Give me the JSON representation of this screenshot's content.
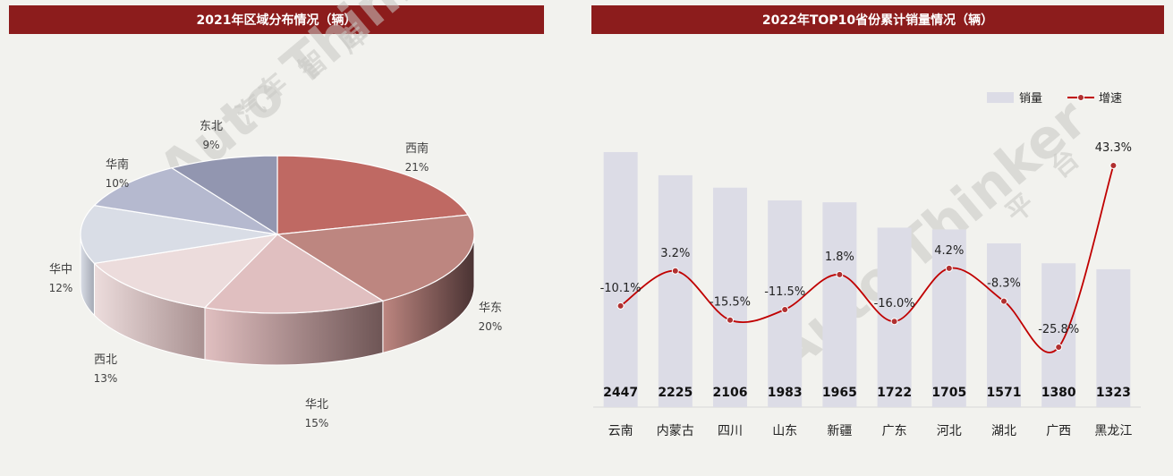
{
  "panels": {
    "pie_title": "2021年区域分布情况（辆）",
    "combo_title": "2022年TOP10省份累计销量情况（辆）"
  },
  "watermark": {
    "text": "Auto Thinker",
    "cn_left": [
      "汽",
      "车",
      "智",
      "库"
    ],
    "cn_right": [
      "平",
      "台"
    ]
  },
  "chart_data": [
    {
      "type": "pie",
      "title": "2021年区域分布情况（辆）",
      "slices": [
        {
          "name": "西南",
          "pct": "21%",
          "value": 21,
          "color": "#bf6963",
          "side": "#6b3331"
        },
        {
          "name": "华东",
          "pct": "20%",
          "value": 20,
          "color": "#bd8680",
          "side": "#4a3333"
        },
        {
          "name": "华北",
          "pct": "15%",
          "value": 15,
          "color": "#e0bfc0",
          "side": "#6e5555"
        },
        {
          "name": "西北",
          "pct": "13%",
          "value": 13,
          "color": "#ecdcdc",
          "side": "#a89090"
        },
        {
          "name": "华中",
          "pct": "12%",
          "value": 12,
          "color": "#d9dde6",
          "side": "#a3a8b3"
        },
        {
          "name": "华南",
          "pct": "10%",
          "value": 10,
          "color": "#b5b9cf",
          "side": "#7f829a"
        },
        {
          "name": "东北",
          "pct": "9%",
          "value": 9,
          "color": "#9296b0",
          "side": "#5e6177"
        }
      ]
    },
    {
      "type": "bar",
      "title": "2022年TOP10省份累计销量情况（辆）",
      "categories": [
        "云南",
        "内蒙古",
        "四川",
        "山东",
        "新疆",
        "广东",
        "河北",
        "湖北",
        "广西",
        "黑龙江"
      ],
      "series": [
        {
          "name": "销量",
          "type": "bar",
          "values": [
            2447,
            2225,
            2106,
            1983,
            1965,
            1722,
            1705,
            1571,
            1380,
            1323
          ],
          "color": "#dcdce6"
        },
        {
          "name": "增速",
          "type": "line",
          "values": [
            -10.1,
            3.2,
            -15.5,
            -11.5,
            1.8,
            -16.0,
            4.2,
            -8.3,
            -25.8,
            43.3
          ],
          "labels": [
            "-10.1%",
            "3.2%",
            "-15.5%",
            "-11.5%",
            "1.8%",
            "-16.0%",
            "4.2%",
            "-8.3%",
            "-25.8%",
            "43.3%"
          ],
          "color": "#c00000"
        }
      ],
      "legend": {
        "position": "top-right"
      }
    }
  ]
}
